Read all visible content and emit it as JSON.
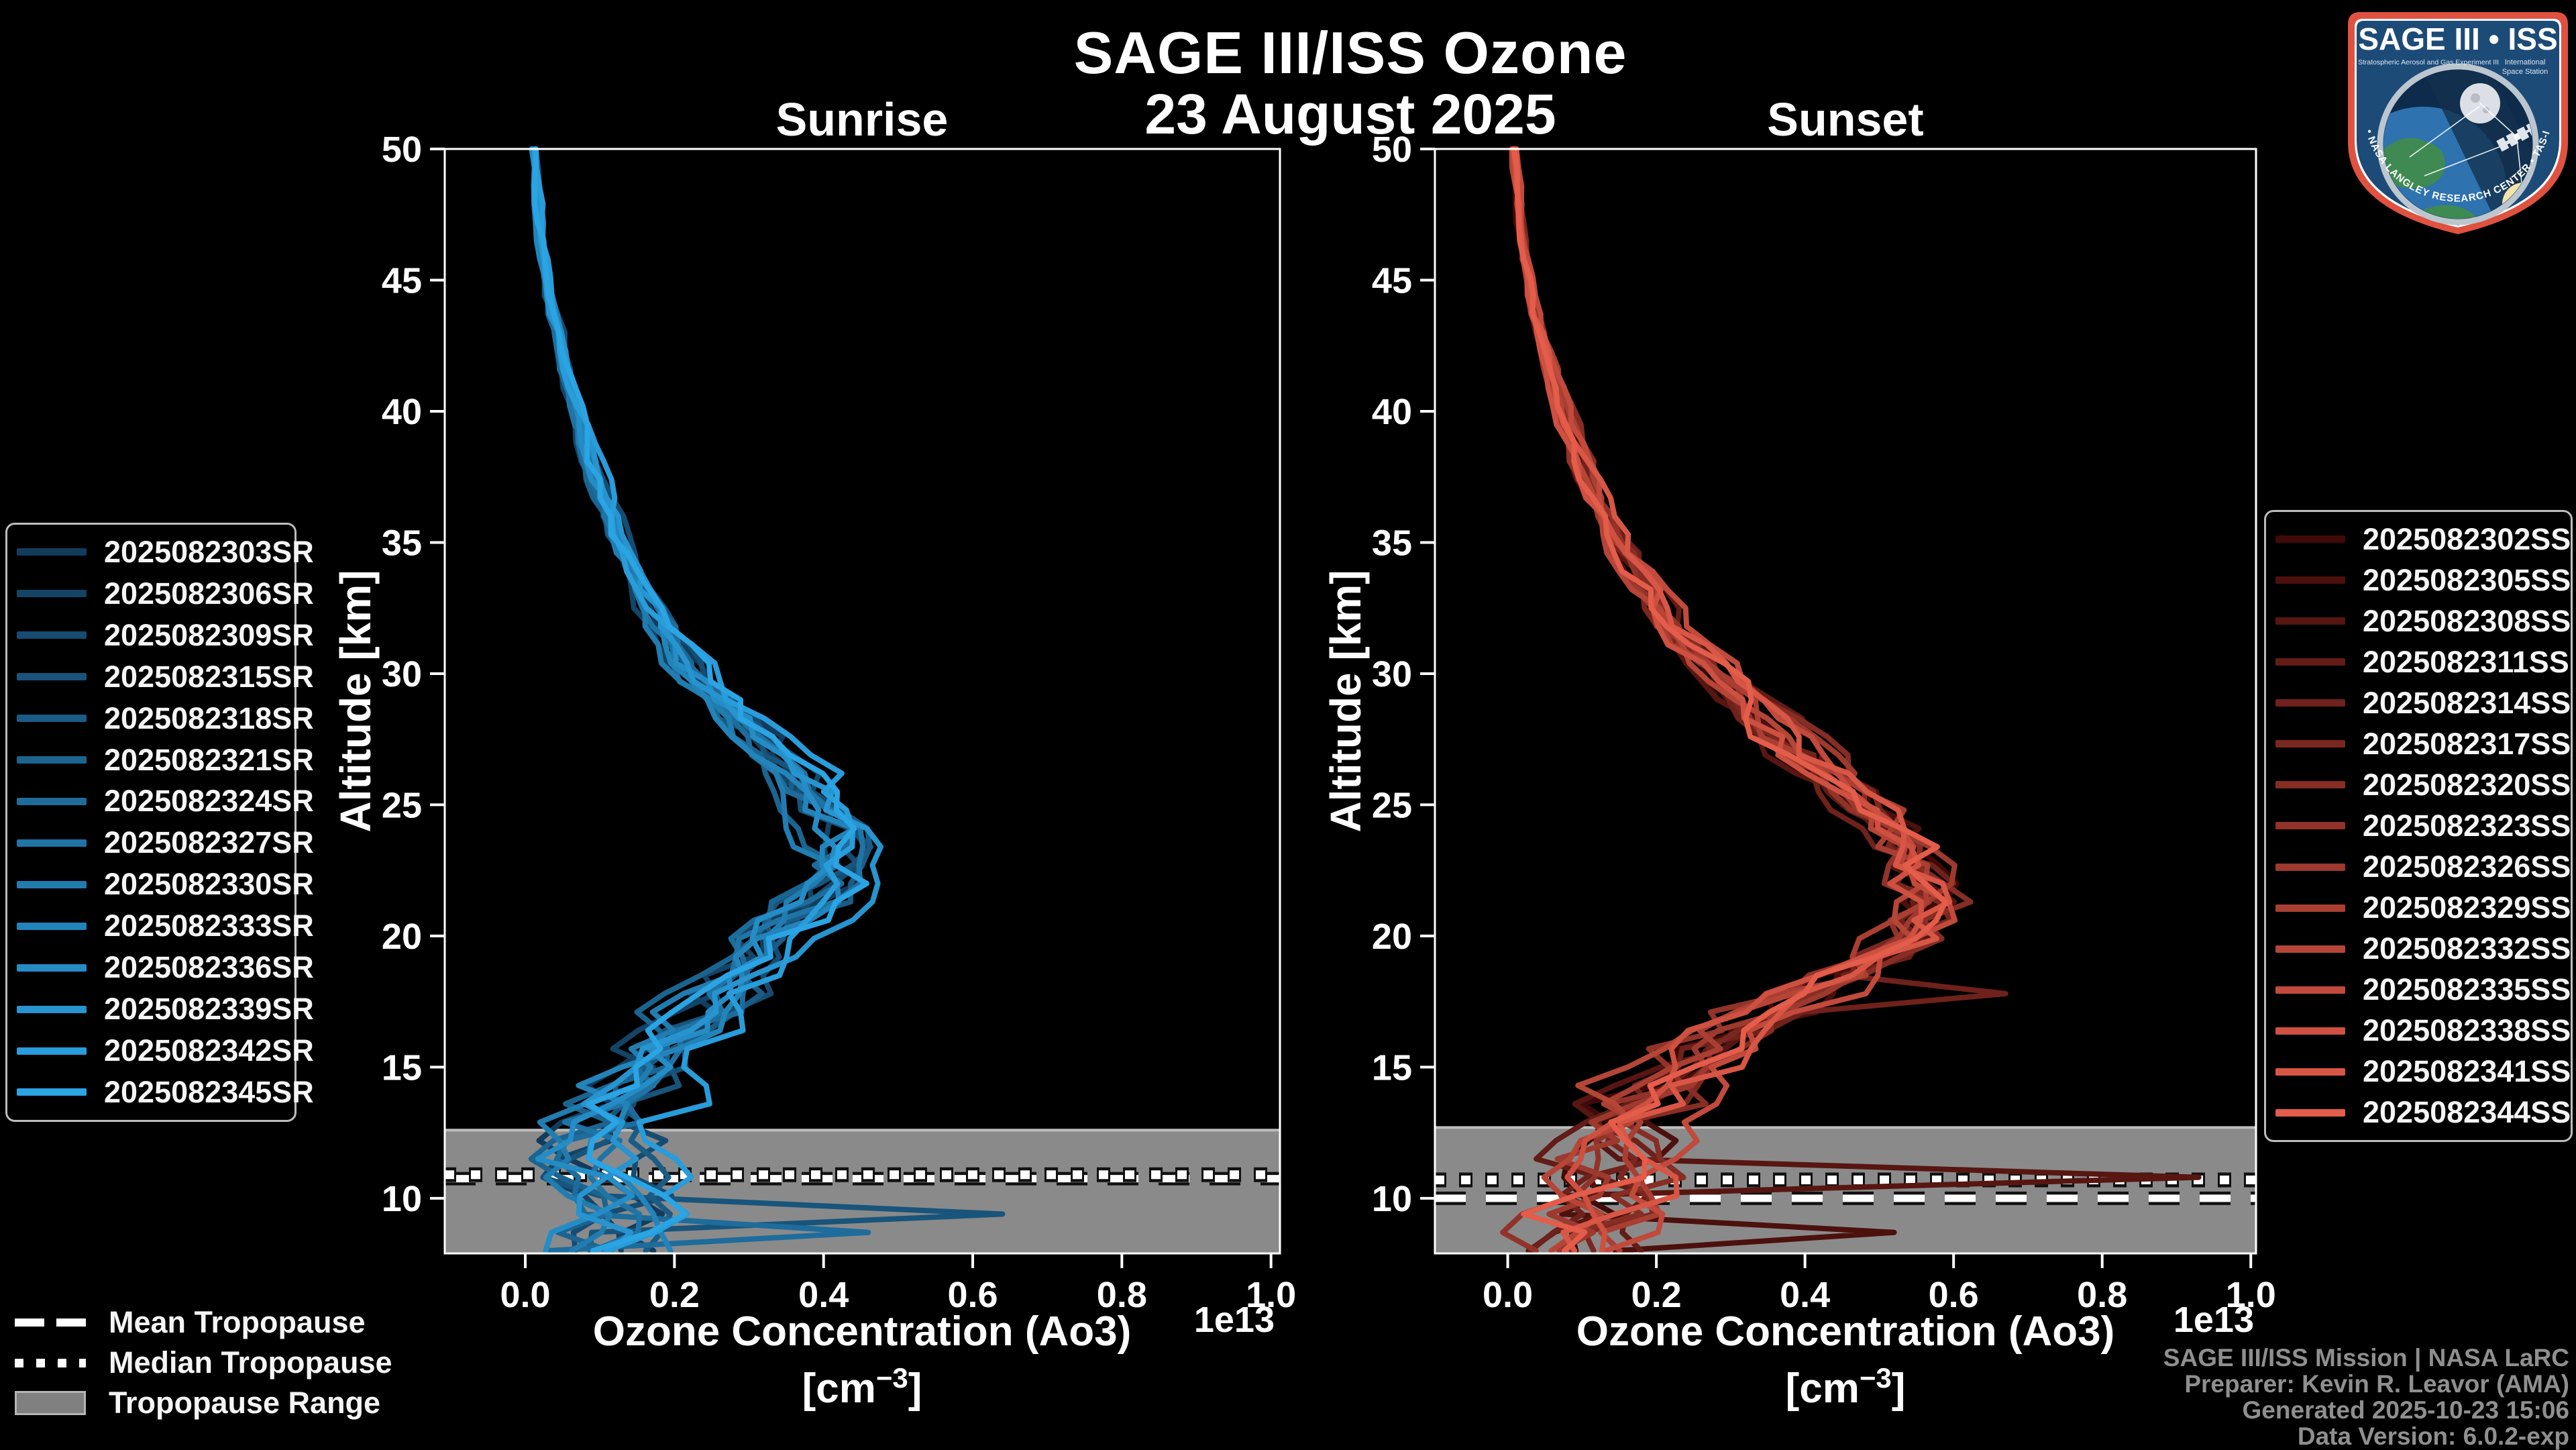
{
  "header": {
    "title": "SAGE III/ISS Ozone",
    "subtitle": "23 August 2025"
  },
  "trop_legend": {
    "mean_label": "Mean Tropopause",
    "median_label": "Median Tropopause",
    "range_label": "Tropopause Range"
  },
  "attribution": {
    "line1": "SAGE III/ISS Mission | NASA LaRC",
    "line2": "Preparer: Kevin R. Leavor (AMA)",
    "line3": "Generated 2025-10-23 15:06",
    "line4": "Data Version: 6.0.2-exp"
  },
  "logo": {
    "title": "SAGE III • ISS",
    "sub_left": "Stratospheric Aerosol and Gas Experiment III",
    "sub_right1": "International",
    "sub_right2": "Space Station",
    "arc_text": "BALL • NASA LANGLEY RESEARCH CENTER • TAS-I • ESA",
    "border_color": "#df5240",
    "field_color": "#1d4b78"
  },
  "render_seed": 20250823,
  "chart_data": [
    {
      "type": "line",
      "panel_title": "Sunrise",
      "xlabel_line1": "Ozone Concentration (Ao3)",
      "xlabel_unit": {
        "open": "[cm",
        "exp": "−3",
        "close": "]"
      },
      "ylabel": "Altitude [km]",
      "offset_label": "1e13",
      "xlim": [
        -0.108,
        1.012
      ],
      "ylim": [
        7.9,
        50
      ],
      "xticks": {
        "values": [
          0,
          0.2,
          0.4,
          0.6,
          0.8,
          1.0
        ],
        "labels": [
          "0.0",
          "0.2",
          "0.4",
          "0.6",
          "0.8",
          "1.0"
        ]
      },
      "yticks": {
        "values": [
          10,
          15,
          20,
          25,
          30,
          35,
          40,
          45,
          50
        ],
        "labels": [
          "10",
          "15",
          "20",
          "25",
          "30",
          "35",
          "40",
          "45",
          "50"
        ]
      },
      "series_ids": [
        "2025082303SR",
        "2025082306SR",
        "2025082309SR",
        "2025082315SR",
        "2025082318SR",
        "2025082321SR",
        "2025082324SR",
        "2025082327SR",
        "2025082330SR",
        "2025082333SR",
        "2025082336SR",
        "2025082339SR",
        "2025082342SR",
        "2025082345SR"
      ],
      "curve_color_start": "#123c5c",
      "curve_color_end": "#2ba4e4",
      "mean_profile": {
        "altitude_km": [
          50,
          47,
          44,
          41,
          38,
          35,
          32,
          30,
          28,
          26,
          25,
          24,
          23,
          22,
          21,
          20,
          19,
          18,
          17,
          16,
          15,
          14,
          13,
          12,
          11,
          10,
          9,
          8
        ],
        "value_1e13": [
          0.012,
          0.02,
          0.035,
          0.06,
          0.09,
          0.125,
          0.18,
          0.23,
          0.3,
          0.37,
          0.4,
          0.43,
          0.43,
          0.42,
          0.38,
          0.33,
          0.3,
          0.28,
          0.25,
          0.21,
          0.18,
          0.15,
          0.12,
          0.1,
          0.1,
          0.12,
          0.1,
          0.1
        ]
      },
      "spread_1e13": [
        0.004,
        0.005,
        0.006,
        0.008,
        0.01,
        0.013,
        0.018,
        0.025,
        0.03,
        0.038,
        0.042,
        0.045,
        0.048,
        0.05,
        0.05,
        0.052,
        0.055,
        0.058,
        0.06,
        0.065,
        0.068,
        0.072,
        0.078,
        0.082,
        0.085,
        0.085,
        0.08,
        0.075
      ],
      "tropopause": {
        "mean_km": 10.75,
        "median_km": 10.9,
        "range_top_km": 12.6,
        "range_bottom_km": 7.9,
        "band_color": "#8a8a8a",
        "band_edge_color": "#bdbdbd"
      },
      "spikes": [
        {
          "series_index": 3,
          "altitude_km": 9.6,
          "value_1e13": 0.64
        },
        {
          "series_index": 6,
          "altitude_km": 8.4,
          "value_1e13": 0.46
        }
      ]
    },
    {
      "type": "line",
      "panel_title": "Sunset",
      "xlabel_line1": "Ozone Concentration (Ao3)",
      "xlabel_unit": {
        "open": "[cm",
        "exp": "−3",
        "close": "]"
      },
      "ylabel": "Altitude [km]",
      "offset_label": "1e13",
      "xlim": [
        -0.098,
        1.007
      ],
      "ylim": [
        7.9,
        50
      ],
      "xticks": {
        "values": [
          0,
          0.2,
          0.4,
          0.6,
          0.8,
          1.0
        ],
        "labels": [
          "0.0",
          "0.2",
          "0.4",
          "0.6",
          "0.8",
          "1.0"
        ]
      },
      "yticks": {
        "values": [
          10,
          15,
          20,
          25,
          30,
          35,
          40,
          45,
          50
        ],
        "labels": [
          "10",
          "15",
          "20",
          "25",
          "30",
          "35",
          "40",
          "45",
          "50"
        ]
      },
      "series_ids": [
        "2025082302SS",
        "2025082305SS",
        "2025082308SS",
        "2025082311SS",
        "2025082314SS",
        "2025082317SS",
        "2025082320SS",
        "2025082323SS",
        "2025082326SS",
        "2025082329SS",
        "2025082332SS",
        "2025082335SS",
        "2025082338SS",
        "2025082341SS",
        "2025082344SS"
      ],
      "curve_color_start": "#400a08",
      "curve_color_end": "#e45c4a",
      "mean_profile": {
        "altitude_km": [
          50,
          47,
          44,
          41,
          38,
          35,
          32,
          30,
          28,
          26,
          25,
          24,
          23,
          22,
          21,
          20,
          19,
          18,
          17,
          16,
          15,
          14,
          13,
          12,
          11,
          10,
          9,
          8
        ],
        "value_1e13": [
          0.008,
          0.018,
          0.035,
          0.065,
          0.1,
          0.15,
          0.22,
          0.29,
          0.36,
          0.44,
          0.48,
          0.52,
          0.55,
          0.57,
          0.58,
          0.55,
          0.49,
          0.42,
          0.34,
          0.27,
          0.22,
          0.18,
          0.15,
          0.13,
          0.12,
          0.12,
          0.1,
          0.09
        ]
      },
      "spread_1e13": [
        0.004,
        0.005,
        0.007,
        0.009,
        0.012,
        0.016,
        0.022,
        0.03,
        0.036,
        0.042,
        0.046,
        0.05,
        0.052,
        0.055,
        0.055,
        0.058,
        0.062,
        0.065,
        0.068,
        0.07,
        0.072,
        0.075,
        0.08,
        0.085,
        0.088,
        0.088,
        0.082,
        0.078
      ],
      "tropopause": {
        "mean_km": 10.0,
        "median_km": 10.7,
        "range_top_km": 12.7,
        "range_bottom_km": 7.9,
        "band_color": "#8a8a8a",
        "band_edge_color": "#bdbdbd"
      },
      "spikes": [
        {
          "series_index": 2,
          "altitude_km": 10.7,
          "value_1e13": 0.93
        },
        {
          "series_index": 4,
          "altitude_km": 18.0,
          "value_1e13": 0.67
        },
        {
          "series_index": 1,
          "altitude_km": 8.6,
          "value_1e13": 0.52
        }
      ]
    }
  ]
}
